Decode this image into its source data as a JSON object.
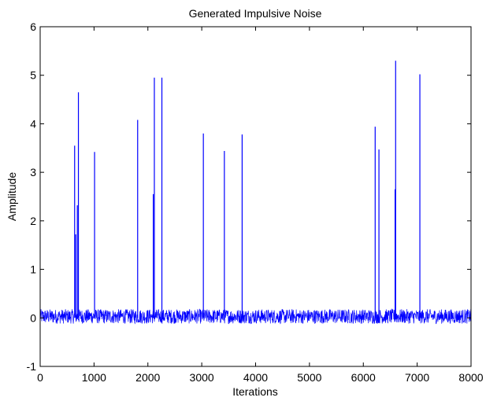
{
  "chart_data": {
    "type": "line",
    "title": "Generated Impulsive Noise",
    "xlabel": "Iterations",
    "ylabel": "Amplitude",
    "xlim": [
      0,
      8000
    ],
    "ylim": [
      -1,
      6
    ],
    "xticks": [
      0,
      1000,
      2000,
      3000,
      4000,
      5000,
      6000,
      7000,
      8000
    ],
    "yticks": [
      -1,
      0,
      1,
      2,
      3,
      4,
      5,
      6
    ],
    "grid": false,
    "legend": "none",
    "series_color": "#0000ff",
    "noise_band": {
      "x_range": [
        0,
        8000
      ],
      "y_min": -0.12,
      "y_max": 0.18
    },
    "impulses": [
      {
        "x": 640,
        "y": 3.55
      },
      {
        "x": 660,
        "y": 1.72
      },
      {
        "x": 690,
        "y": 2.32
      },
      {
        "x": 710,
        "y": 4.65
      },
      {
        "x": 1010,
        "y": 3.42
      },
      {
        "x": 1810,
        "y": 4.08
      },
      {
        "x": 2100,
        "y": 2.55
      },
      {
        "x": 2120,
        "y": 4.95
      },
      {
        "x": 2260,
        "y": 4.95
      },
      {
        "x": 3030,
        "y": 3.8
      },
      {
        "x": 3420,
        "y": 3.44
      },
      {
        "x": 3750,
        "y": 3.78
      },
      {
        "x": 6220,
        "y": 3.94
      },
      {
        "x": 6290,
        "y": 3.47
      },
      {
        "x": 6590,
        "y": 2.65
      },
      {
        "x": 6600,
        "y": 5.3
      },
      {
        "x": 7050,
        "y": 5.02
      }
    ]
  }
}
